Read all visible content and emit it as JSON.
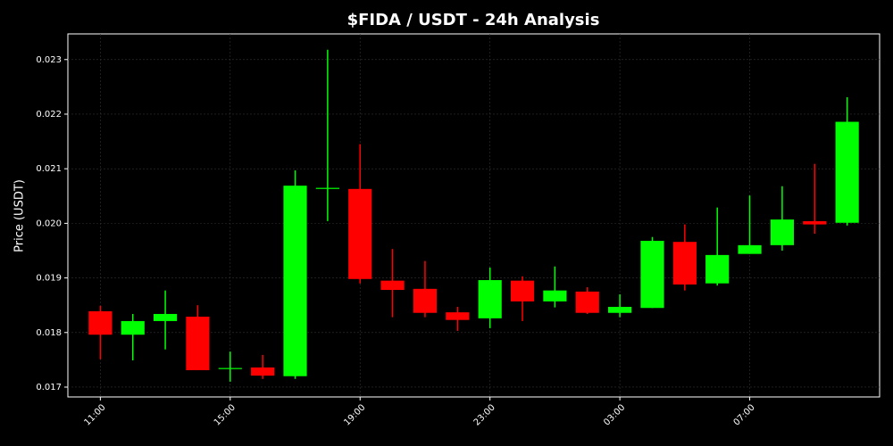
{
  "chart_data": {
    "type": "candlestick",
    "title": "$FIDA / USDT - 24h Analysis",
    "y_label": "Price (USDT)",
    "categories": [
      "11:00",
      null,
      null,
      null,
      "15:00",
      null,
      null,
      null,
      "19:00",
      null,
      null,
      null,
      "23:00",
      null,
      null,
      null,
      "03:00",
      null,
      null,
      null,
      "07:00",
      null,
      null,
      null
    ],
    "open": [
      0.01839,
      0.01796,
      0.01821,
      0.01829,
      0.01734,
      0.01736,
      0.0172,
      0.02063,
      0.02063,
      0.01895,
      0.0188,
      0.01837,
      0.01826,
      0.01895,
      0.01857,
      0.01875,
      0.01836,
      0.01845,
      0.01966,
      0.0189,
      0.01944,
      0.0196,
      0.02004,
      0.02001
    ],
    "high": [
      0.01849,
      0.01834,
      0.01877,
      0.0185,
      0.01765,
      0.01759,
      0.02097,
      0.02318,
      0.02145,
      0.01953,
      0.01931,
      0.01847,
      0.01919,
      0.01903,
      0.01921,
      0.01883,
      0.0187,
      0.01975,
      0.01998,
      0.02029,
      0.02051,
      0.02068,
      0.02109,
      0.02231
    ],
    "low": [
      0.01751,
      0.01749,
      0.01769,
      0.01731,
      0.0171,
      0.01715,
      0.01715,
      0.02004,
      0.0189,
      0.01828,
      0.01828,
      0.01803,
      0.01808,
      0.01821,
      0.01846,
      0.01834,
      0.01828,
      0.01845,
      0.01877,
      0.01886,
      0.01944,
      0.0195,
      0.01981,
      0.01996
    ],
    "close": [
      0.01796,
      0.01821,
      0.01834,
      0.01731,
      0.01735,
      0.01721,
      0.02069,
      0.02065,
      0.01898,
      0.01878,
      0.01836,
      0.01823,
      0.01896,
      0.01857,
      0.01877,
      0.01836,
      0.01847,
      0.01968,
      0.01888,
      0.01942,
      0.0196,
      0.02007,
      0.01998,
      0.02186
    ],
    "up_color": "#00ff00",
    "down_color": "#ff0000",
    "ylim": [
      0.01682,
      0.02347
    ],
    "yticks": [
      0.017,
      0.018,
      0.019,
      {
        "value": 0.02,
        "label": "0.020"
      },
      0.021,
      0.022,
      0.023
    ],
    "grid": true
  }
}
